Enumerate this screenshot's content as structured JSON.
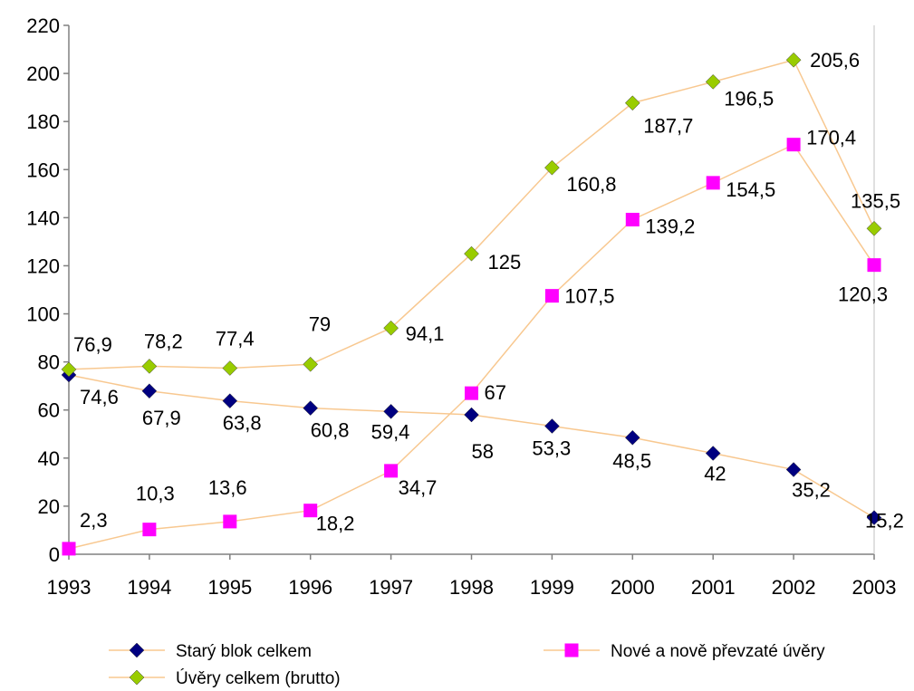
{
  "chart_data": {
    "type": "line",
    "title": "",
    "xlabel": "",
    "ylabel": "",
    "categories": [
      "1993",
      "1994",
      "1995",
      "1996",
      "1997",
      "1998",
      "1999",
      "2000",
      "2001",
      "2002",
      "2003"
    ],
    "ylim": [
      0,
      220
    ],
    "yticks": [
      "0",
      "20",
      "40",
      "60",
      "80",
      "100",
      "120",
      "140",
      "160",
      "180",
      "200",
      "220"
    ],
    "grid": false,
    "legend_position": "bottom",
    "series": [
      {
        "name": "Starý blok celkem",
        "marker": "diamond",
        "marker_color": "#000080",
        "line_color": "#F8C890",
        "values": [
          74.6,
          67.9,
          63.8,
          60.8,
          59.4,
          58,
          53.3,
          48.5,
          42,
          35.2,
          15.2
        ],
        "labels": [
          "74,6",
          "67,9",
          "63,8",
          "60,8",
          "59,4",
          "58",
          "53,3",
          "48,5",
          "42",
          "35,2",
          "15,2"
        ]
      },
      {
        "name": "Nové a nově převzaté úvěry",
        "marker": "square",
        "marker_color": "#FF00FF",
        "line_color": "#F8C890",
        "values": [
          2.3,
          10.3,
          13.6,
          18.2,
          34.7,
          67,
          107.5,
          139.2,
          154.5,
          170.4,
          120.3
        ],
        "labels": [
          "2,3",
          "10,3",
          "13,6",
          "18,2",
          "34,7",
          "67",
          "107,5",
          "139,2",
          "154,5",
          "170,4",
          "120,3"
        ]
      },
      {
        "name": "Úvěry celkem (brutto)",
        "marker": "diamond",
        "marker_color": "#99CC00",
        "line_color": "#F8C890",
        "values": [
          76.9,
          78.2,
          77.4,
          79,
          94.1,
          125,
          160.8,
          187.7,
          196.5,
          205.6,
          135.5
        ],
        "labels": [
          "76,9",
          "78,2",
          "77,4",
          "79",
          "94,1",
          "125",
          "160,8",
          "187,7",
          "196,5",
          "205,6",
          "135,5"
        ]
      }
    ]
  }
}
